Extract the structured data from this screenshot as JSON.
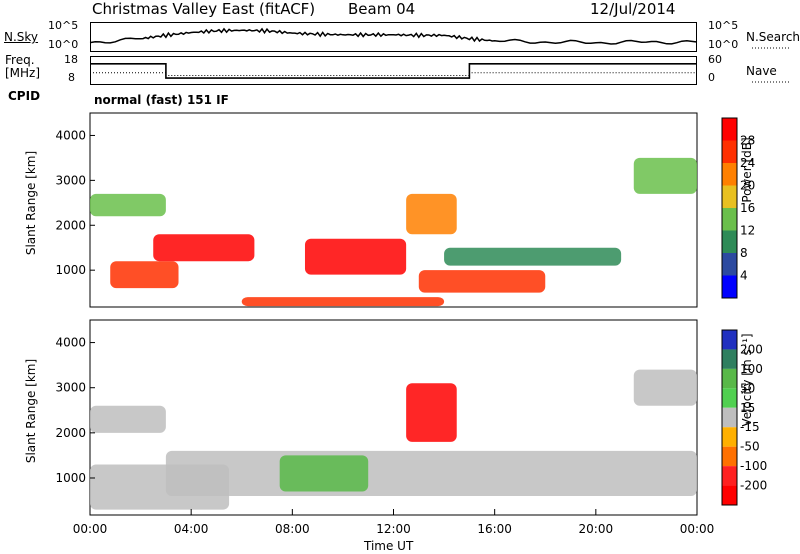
{
  "header": {
    "station": "Christmas Valley East (fitACF)",
    "beam": "Beam 04",
    "date": "12/Jul/2014"
  },
  "aux_panels": {
    "nsky_label": "N.Sky",
    "nsearch_label": "N.Search",
    "nsky_ticks": [
      "10^5",
      "10^0"
    ],
    "nsearch_ticks": [
      "10^5",
      "10^0"
    ],
    "freq_label_line1": "Freq.",
    "freq_label_line2": "[MHz]",
    "freq_ticks": [
      "18",
      "8"
    ],
    "nave_label": "Nave",
    "nave_ticks": [
      "60",
      "0"
    ],
    "cpid_label": "CPID",
    "cpid_text": "normal (fast) 151 IF"
  },
  "chart_data": [
    {
      "type": "line",
      "name": "noise",
      "series": [
        {
          "name": "N.Sky",
          "x": [
            0,
            2,
            3,
            4,
            5,
            6,
            7,
            8,
            9,
            10,
            11,
            12,
            13,
            14,
            15,
            16,
            18,
            20,
            22,
            24
          ],
          "y": [
            1.5,
            2.2,
            2.8,
            3.3,
            3.6,
            3.7,
            3.6,
            3.2,
            3.0,
            2.9,
            2.9,
            2.9,
            2.8,
            2.8,
            2.2,
            1.8,
            1.6,
            1.5,
            1.6,
            1.6
          ]
        }
      ],
      "ylim": [
        0,
        5
      ]
    },
    {
      "type": "line",
      "name": "frequency",
      "series": [
        {
          "name": "Freq.",
          "x": [
            0,
            3,
            3,
            15,
            15,
            24
          ],
          "y": [
            15.5,
            15.5,
            10.2,
            10.2,
            15.5,
            15.5
          ]
        },
        {
          "name": "Nave",
          "x": [
            0,
            3,
            3,
            15,
            15,
            24
          ],
          "y": [
            25,
            25,
            19,
            19,
            25,
            25
          ]
        }
      ],
      "ylim": [
        8,
        18
      ]
    },
    {
      "type": "heatmap",
      "name": "power",
      "xlabel": "",
      "ylabel": "Slant Range [km]",
      "y_ticks": [
        "1000",
        "2000",
        "3000",
        "4000"
      ],
      "ylim": [
        180,
        4500
      ],
      "colorbar": {
        "label": "Power [dB]",
        "ticks": [
          "4",
          "8",
          "12",
          "16",
          "20",
          "24",
          "28"
        ],
        "colors": [
          "#0000ff",
          "#2c4aa0",
          "#2e8b57",
          "#6abf4b",
          "#e8c020",
          "#ff8000",
          "#ff3000",
          "#ff0000"
        ]
      },
      "regions": [
        {
          "x0": 0.8,
          "x1": 3.5,
          "y0": 600,
          "y1": 1200,
          "level": 22
        },
        {
          "x0": 2.5,
          "x1": 6.5,
          "y0": 1200,
          "y1": 1800,
          "level": 26
        },
        {
          "x0": 8.5,
          "x1": 12.5,
          "y0": 900,
          "y1": 1700,
          "level": 27
        },
        {
          "x0": 6.0,
          "x1": 14.0,
          "y0": 200,
          "y1": 400,
          "level": 24
        },
        {
          "x0": 13.0,
          "x1": 18.0,
          "y0": 500,
          "y1": 1000,
          "level": 25
        },
        {
          "x0": 0.0,
          "x1": 3.0,
          "y0": 2200,
          "y1": 2700,
          "level": 12
        },
        {
          "x0": 12.5,
          "x1": 14.5,
          "y0": 1800,
          "y1": 2700,
          "level": 20
        },
        {
          "x0": 21.5,
          "x1": 24.0,
          "y0": 2700,
          "y1": 3500,
          "level": 10
        },
        {
          "x0": 14.0,
          "x1": 21.0,
          "y0": 1100,
          "y1": 1500,
          "level": 8
        }
      ]
    },
    {
      "type": "heatmap",
      "name": "velocity",
      "xlabel": "Time UT",
      "ylabel": "Slant Range [km]",
      "x_ticks": [
        "00:00",
        "04:00",
        "08:00",
        "12:00",
        "16:00",
        "20:00",
        "00:00"
      ],
      "y_ticks": [
        "1000",
        "2000",
        "3000",
        "4000"
      ],
      "ylim": [
        180,
        4500
      ],
      "colorbar": {
        "label": "Velocity [m s⁻¹]",
        "ticks": [
          "200",
          "100",
          "50",
          "15",
          "-15",
          "-50",
          "-100",
          "-200"
        ],
        "colors": [
          "#2030c0",
          "#2f7f5f",
          "#58b848",
          "#50d050",
          "#bebebe",
          "#ffb000",
          "#ff7000",
          "#ff2020",
          "#ff0000"
        ]
      },
      "regions": [
        {
          "x0": 0.0,
          "x1": 5.5,
          "y0": 300,
          "y1": 1300,
          "level": 0
        },
        {
          "x0": 0.0,
          "x1": 3.0,
          "y0": 2000,
          "y1": 2600,
          "level": 0
        },
        {
          "x0": 3.0,
          "x1": 24.0,
          "y0": 600,
          "y1": 1600,
          "level": 0
        },
        {
          "x0": 7.5,
          "x1": 11.0,
          "y0": 700,
          "y1": 1500,
          "level": 60
        },
        {
          "x0": 12.5,
          "x1": 14.5,
          "y0": 1800,
          "y1": 3100,
          "level": -180
        },
        {
          "x0": 21.5,
          "x1": 24.0,
          "y0": 2600,
          "y1": 3400,
          "level": 0
        }
      ]
    }
  ]
}
